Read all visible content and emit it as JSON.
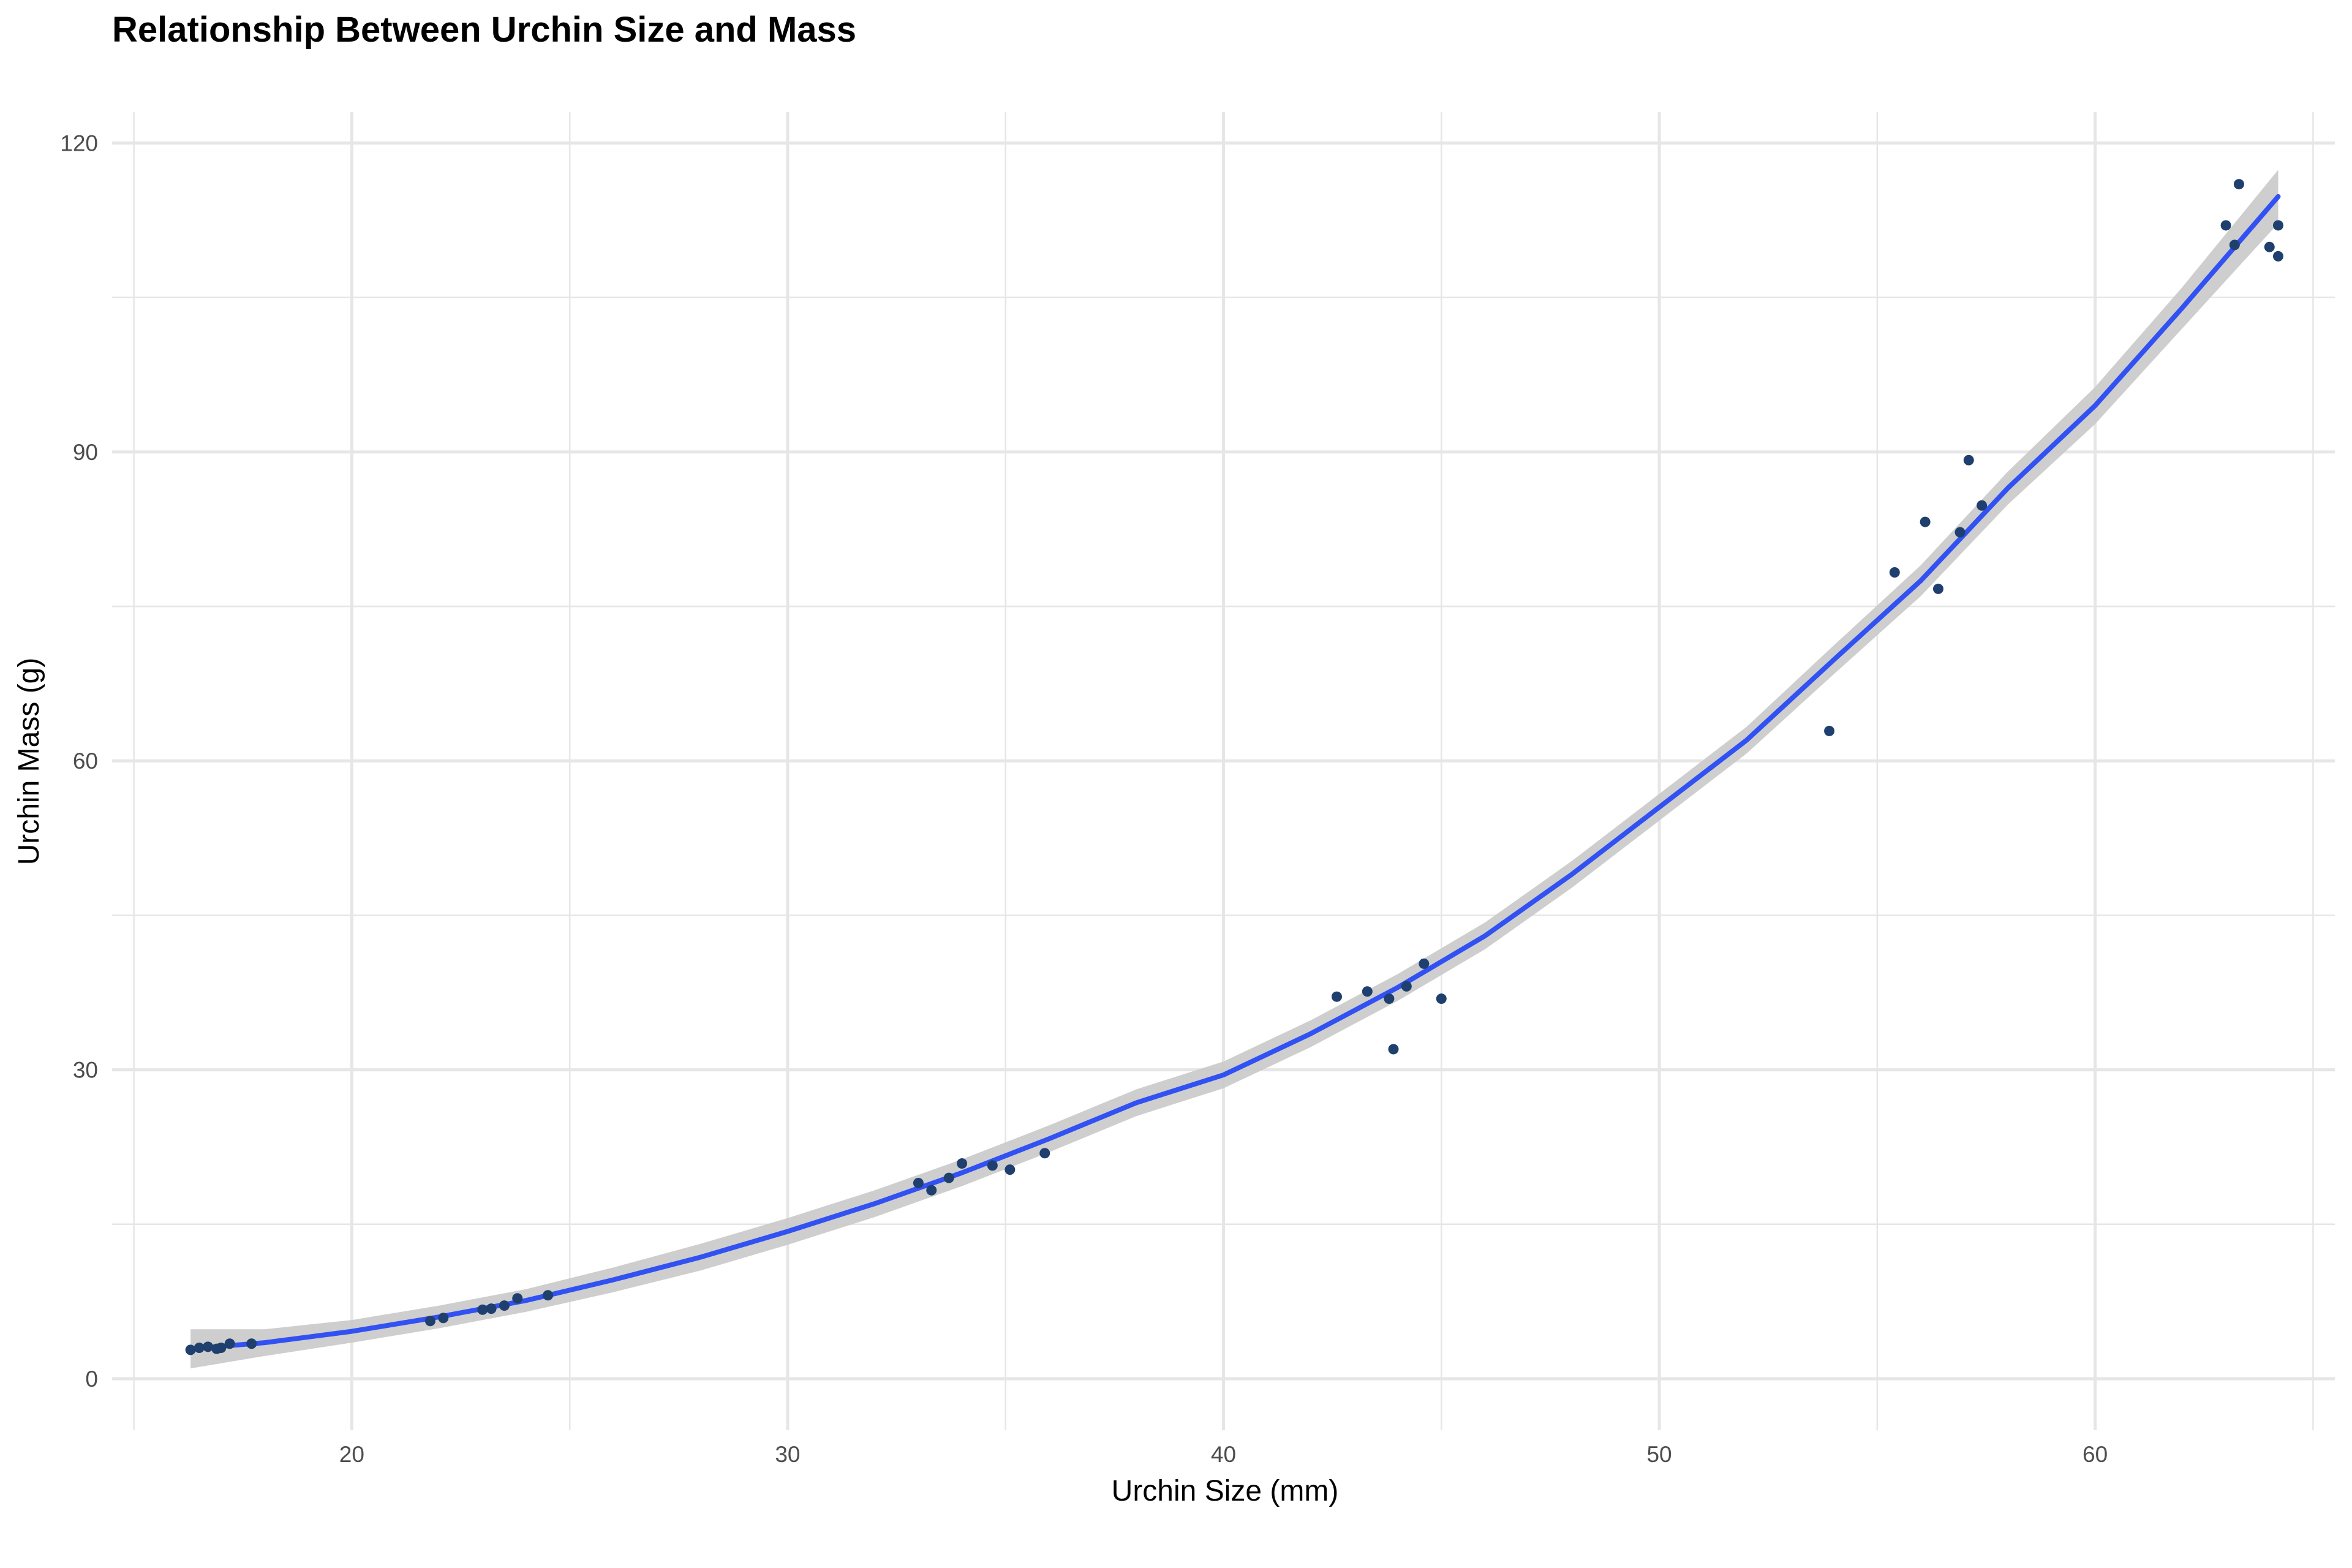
{
  "chart_data": {
    "type": "scatter",
    "title": "Relationship Between Urchin Size and Mass",
    "xlabel": "Urchin Size (mm)",
    "ylabel": "Urchin Mass (g)",
    "xlim": [
      14.5,
      65.5
    ],
    "ylim": [
      -5,
      123
    ],
    "xticks": [
      20,
      30,
      40,
      50,
      60
    ],
    "yticks": [
      0,
      30,
      60,
      90,
      120
    ],
    "grid": true,
    "colors": {
      "points": "#1f3f6e",
      "fit_line": "#3151f2",
      "ribbon": "#c9c9c9",
      "grid": "#e6e6e6"
    },
    "points": [
      {
        "x": 16.3,
        "y": 2.8
      },
      {
        "x": 16.5,
        "y": 3.0
      },
      {
        "x": 16.7,
        "y": 3.1
      },
      {
        "x": 16.9,
        "y": 2.9
      },
      {
        "x": 17.0,
        "y": 3.0
      },
      {
        "x": 17.2,
        "y": 3.4
      },
      {
        "x": 17.7,
        "y": 3.4
      },
      {
        "x": 21.8,
        "y": 5.6
      },
      {
        "x": 22.1,
        "y": 5.9
      },
      {
        "x": 23.0,
        "y": 6.7
      },
      {
        "x": 23.2,
        "y": 6.8
      },
      {
        "x": 23.5,
        "y": 7.1
      },
      {
        "x": 23.8,
        "y": 7.8
      },
      {
        "x": 24.5,
        "y": 8.1
      },
      {
        "x": 33.0,
        "y": 19.0
      },
      {
        "x": 33.3,
        "y": 18.3
      },
      {
        "x": 33.7,
        "y": 19.5
      },
      {
        "x": 34.0,
        "y": 20.9
      },
      {
        "x": 34.7,
        "y": 20.7
      },
      {
        "x": 35.1,
        "y": 20.3
      },
      {
        "x": 35.9,
        "y": 21.9
      },
      {
        "x": 42.6,
        "y": 37.1
      },
      {
        "x": 43.3,
        "y": 37.6
      },
      {
        "x": 43.8,
        "y": 36.9
      },
      {
        "x": 43.9,
        "y": 32.0
      },
      {
        "x": 44.2,
        "y": 38.1
      },
      {
        "x": 44.6,
        "y": 40.3
      },
      {
        "x": 45.0,
        "y": 36.9
      },
      {
        "x": 53.9,
        "y": 62.9
      },
      {
        "x": 55.4,
        "y": 78.3
      },
      {
        "x": 56.1,
        "y": 83.2
      },
      {
        "x": 56.4,
        "y": 76.7
      },
      {
        "x": 56.9,
        "y": 82.2
      },
      {
        "x": 57.1,
        "y": 89.2
      },
      {
        "x": 57.4,
        "y": 84.8
      },
      {
        "x": 63.0,
        "y": 112.0
      },
      {
        "x": 63.2,
        "y": 110.1
      },
      {
        "x": 63.3,
        "y": 116.0
      },
      {
        "x": 64.0,
        "y": 109.9
      },
      {
        "x": 64.2,
        "y": 112.0
      },
      {
        "x": 64.2,
        "y": 109.0
      }
    ],
    "fit": {
      "x": [
        16.3,
        18,
        20,
        22,
        24,
        26,
        28,
        30,
        32,
        34,
        36,
        38,
        40,
        42,
        44,
        46,
        48,
        50,
        52,
        54,
        56,
        58,
        60,
        62,
        64.2
      ],
      "y": [
        2.9,
        3.5,
        4.6,
        6.0,
        7.6,
        9.6,
        11.8,
        14.3,
        17.0,
        20.0,
        23.3,
        26.8,
        29.5,
        33.5,
        38.0,
        43.0,
        49.0,
        55.5,
        62.0,
        69.8,
        77.5,
        86.5,
        94.5,
        104.0,
        114.8
      ]
    },
    "band_halfwidth": [
      1.9,
      1.3,
      1.1,
      1.1,
      1.1,
      1.2,
      1.3,
      1.3,
      1.3,
      1.3,
      1.3,
      1.3,
      1.3,
      1.3,
      1.3,
      1.3,
      1.3,
      1.3,
      1.3,
      1.4,
      1.5,
      1.6,
      1.8,
      2.0,
      2.6
    ]
  }
}
